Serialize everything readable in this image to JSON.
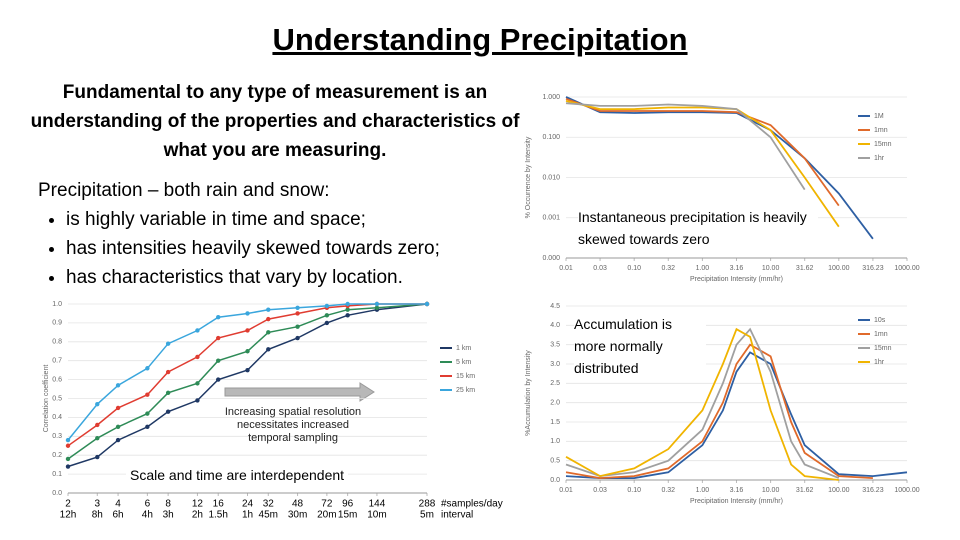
{
  "title": "Understanding Precipitation",
  "intro": "Fundamental to any type of measurement is an understanding of the properties and characteristics of what you are measuring.",
  "list_heading": "Precipitation – both rain and snow:",
  "bullets": [
    "is highly variable in time and space;",
    "has intensities heavily skewed towards zero;",
    "has characteristics that vary by location."
  ],
  "chart_data": [
    {
      "type": "line",
      "annotation": "Instantaneous precipitation is heavily skewed towards zero",
      "xlabel": "Precipitation Intensity (mm/hr)",
      "ylabel": "% Occurrence by Intensity",
      "xlog": true,
      "ylog": true,
      "grid": true,
      "x": [
        0.01,
        0.0316,
        0.1,
        0.316,
        1,
        3.16,
        10,
        31.62,
        100,
        316.23,
        1000
      ],
      "xlim": [
        0.01,
        1000
      ],
      "ylim": [
        0.0001,
        1
      ],
      "xticks": [
        0.01,
        {
          "value": 0.0316,
          "label": "0.03"
        },
        {
          "value": 0.1,
          "label": "0.10"
        },
        {
          "value": 0.316,
          "label": "0.32"
        },
        {
          "value": 1,
          "label": "1.00"
        },
        3.16,
        {
          "value": 10,
          "label": "10.00"
        },
        31.62,
        {
          "value": 100,
          "label": "100.00"
        },
        316.23,
        {
          "value": 1000,
          "label": "1000.00"
        }
      ],
      "yticks": [
        {
          "value": 1,
          "label": "1.000"
        },
        {
          "value": 0.1,
          "label": "0.100"
        },
        {
          "value": 0.01,
          "label": "0.010"
        },
        {
          "value": 0.001,
          "label": "0.001"
        },
        {
          "value": 0.0001,
          "label": "0.000"
        }
      ],
      "series": [
        {
          "name": "1M",
          "color": "#2e5fa3",
          "values": [
            1.0,
            0.42,
            0.4,
            0.42,
            0.42,
            0.4,
            0.15,
            0.03,
            0.004,
            0.0003,
            null
          ]
        },
        {
          "name": "1mn",
          "color": "#e06a2b",
          "values": [
            0.9,
            0.45,
            0.45,
            0.45,
            0.45,
            0.42,
            0.2,
            0.03,
            0.002,
            null,
            null
          ]
        },
        {
          "name": "15mn",
          "color": "#f0b400",
          "values": [
            0.8,
            0.5,
            0.5,
            0.55,
            0.55,
            0.5,
            0.15,
            0.01,
            0.0006,
            null,
            null
          ]
        },
        {
          "name": "1hr",
          "color": "#a0a0a0",
          "values": [
            0.7,
            0.6,
            0.6,
            0.65,
            0.6,
            0.5,
            0.1,
            0.005,
            null,
            null,
            null
          ]
        }
      ]
    },
    {
      "type": "line",
      "annotation": "Accumulation is more normally distributed",
      "xlabel": "Precipitation Intensity (mm/hr)",
      "ylabel": "%Accumulation by Intensity",
      "xlog": true,
      "ylog": false,
      "grid": true,
      "x": [
        0.01,
        0.0316,
        0.1,
        0.316,
        1,
        2,
        3.16,
        5,
        10,
        20,
        31.62,
        100,
        316.23,
        1000
      ],
      "xlim": [
        0.01,
        1000
      ],
      "ylim": [
        0,
        4.5
      ],
      "xticks": [
        0.01,
        {
          "value": 0.0316,
          "label": "0.03"
        },
        {
          "value": 0.1,
          "label": "0.10"
        },
        {
          "value": 0.316,
          "label": "0.32"
        },
        {
          "value": 1,
          "label": "1.00"
        },
        3.16,
        {
          "value": 10,
          "label": "10.00"
        },
        31.62,
        {
          "value": 100,
          "label": "100.00"
        },
        316.23,
        {
          "value": 1000,
          "label": "1000.00"
        }
      ],
      "yticks": [
        {
          "value": 0,
          "label": "0.0"
        },
        0.5,
        {
          "value": 1,
          "label": "1.0"
        },
        1.5,
        {
          "value": 2,
          "label": "2.0"
        },
        2.5,
        {
          "value": 3,
          "label": "3.0"
        },
        3.5,
        {
          "value": 4,
          "label": "4.0"
        },
        4.5
      ],
      "series": [
        {
          "name": "10s",
          "color": "#2e5fa3",
          "values": [
            0.1,
            0.05,
            0.05,
            0.2,
            0.9,
            1.8,
            2.8,
            3.3,
            3.0,
            1.7,
            0.9,
            0.15,
            0.1,
            0.2
          ]
        },
        {
          "name": "1mn",
          "color": "#e06a2b",
          "values": [
            0.2,
            0.05,
            0.1,
            0.3,
            1.0,
            2.0,
            3.0,
            3.5,
            3.2,
            1.5,
            0.7,
            0.1,
            0.05,
            null
          ]
        },
        {
          "name": "15mn",
          "color": "#a0a0a0",
          "values": [
            0.4,
            0.1,
            0.2,
            0.5,
            1.3,
            2.5,
            3.5,
            3.9,
            2.8,
            1.0,
            0.4,
            0.05,
            null,
            null
          ]
        },
        {
          "name": "1hr",
          "color": "#f0b400",
          "values": [
            0.6,
            0.1,
            0.3,
            0.8,
            1.8,
            3.0,
            3.9,
            3.7,
            1.8,
            0.4,
            0.1,
            0,
            null,
            null
          ]
        }
      ]
    },
    {
      "type": "line",
      "annotation": "Increasing spatial resolution necessitates increased temporal sampling",
      "annotation2": "Scale and time are interdependent",
      "ylabel": "Correlation coefficient",
      "xlabel": "#samples/day",
      "xlabel2": "interval",
      "xlog": true,
      "ylog": false,
      "grid": true,
      "markers": true,
      "x": [
        2,
        3,
        4,
        6,
        8,
        12,
        16,
        24,
        32,
        48,
        72,
        96,
        144,
        288
      ],
      "xticks": [
        2,
        3,
        4,
        6,
        8,
        12,
        16,
        24,
        32,
        48,
        72,
        96,
        144,
        288
      ],
      "interval_labels": [
        "12h",
        "8h",
        "6h",
        "4h",
        "3h",
        "2h",
        "1.5h",
        "1h",
        "45m",
        "30m",
        "20m",
        "15m",
        "10m",
        "5m"
      ],
      "xlim": [
        2,
        288
      ],
      "ylim": [
        0,
        1
      ],
      "yticks": [
        {
          "value": 0,
          "label": "0.0"
        },
        0.1,
        0.2,
        0.3,
        0.4,
        0.5,
        0.6,
        0.7,
        0.8,
        0.9,
        {
          "value": 1,
          "label": "1.0"
        }
      ],
      "series": [
        {
          "name": "1 km",
          "color": "#1f3864",
          "values": [
            0.14,
            0.19,
            0.28,
            0.35,
            0.43,
            0.49,
            0.6,
            0.65,
            0.76,
            0.82,
            0.9,
            0.94,
            0.97,
            1.0
          ]
        },
        {
          "name": "5 km",
          "color": "#2e8b57",
          "values": [
            0.18,
            0.29,
            0.35,
            0.42,
            0.53,
            0.58,
            0.7,
            0.75,
            0.85,
            0.88,
            0.94,
            0.97,
            0.98,
            1.0
          ]
        },
        {
          "name": "15 km",
          "color": "#e03c31",
          "values": [
            0.25,
            0.36,
            0.45,
            0.52,
            0.64,
            0.72,
            0.82,
            0.86,
            0.92,
            0.95,
            0.98,
            0.99,
            1.0,
            1.0
          ]
        },
        {
          "name": "25 km",
          "color": "#3aa6dd",
          "values": [
            0.28,
            0.47,
            0.57,
            0.66,
            0.79,
            0.86,
            0.93,
            0.95,
            0.97,
            0.98,
            0.99,
            1.0,
            1.0,
            1.0
          ]
        }
      ]
    }
  ]
}
